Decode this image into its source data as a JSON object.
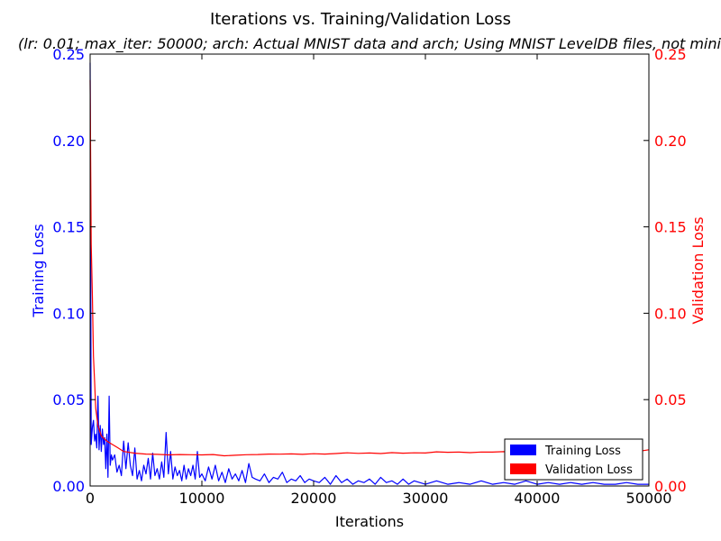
{
  "chart_data": {
    "type": "line",
    "title": "Iterations vs. Training/Validation Loss",
    "subtitle": "(lr: 0.01; max_iter: 50000; arch: Actual MNIST data and arch; Using MNIST LevelDB files, not mini",
    "xlabel": "Iterations",
    "ylabel_left": "Training Loss",
    "ylabel_right": "Validation Loss",
    "xlim": [
      0,
      50000
    ],
    "ylim_left": [
      0,
      0.25
    ],
    "ylim_right": [
      0,
      0.25
    ],
    "x_ticks": [
      "0",
      "10000",
      "20000",
      "30000",
      "40000",
      "50000"
    ],
    "y_ticks_left": [
      "0.00",
      "0.05",
      "0.10",
      "0.15",
      "0.20",
      "0.25"
    ],
    "y_ticks_right": [
      "0.00",
      "0.05",
      "0.10",
      "0.15",
      "0.20",
      "0.25"
    ],
    "grid": false,
    "legend_position": "bottom-right",
    "colors": {
      "training": "#0000ff",
      "validation": "#ff0000"
    },
    "series": [
      {
        "name": "Training Loss",
        "axis": "left",
        "color": "#0000ff",
        "x": [
          0,
          100,
          200,
          300,
          400,
          500,
          600,
          700,
          800,
          900,
          1000,
          1100,
          1200,
          1300,
          1400,
          1500,
          1600,
          1700,
          1800,
          1900,
          2000,
          2200,
          2400,
          2600,
          2800,
          3000,
          3200,
          3400,
          3600,
          3800,
          4000,
          4200,
          4400,
          4600,
          4800,
          5000,
          5200,
          5400,
          5600,
          5800,
          6000,
          6200,
          6400,
          6600,
          6800,
          7000,
          7200,
          7400,
          7600,
          7800,
          8000,
          8200,
          8400,
          8600,
          8800,
          9000,
          9200,
          9400,
          9600,
          9800,
          10000,
          10300,
          10600,
          10900,
          11200,
          11500,
          11800,
          12100,
          12400,
          12700,
          13000,
          13300,
          13600,
          13900,
          14200,
          14500,
          14800,
          15200,
          15600,
          16000,
          16400,
          16800,
          17200,
          17600,
          18000,
          18400,
          18800,
          19200,
          19600,
          20000,
          20500,
          21000,
          21500,
          22000,
          22500,
          23000,
          23500,
          24000,
          24500,
          25000,
          25500,
          26000,
          26500,
          27000,
          27500,
          28000,
          28500,
          29000,
          29500,
          30000,
          31000,
          32000,
          33000,
          34000,
          35000,
          36000,
          37000,
          38000,
          39000,
          40000,
          41000,
          42000,
          43000,
          44000,
          45000,
          46000,
          47000,
          48000,
          49000,
          50000
        ],
        "values": [
          0.245,
          0.024,
          0.034,
          0.038,
          0.026,
          0.03,
          0.022,
          0.052,
          0.021,
          0.035,
          0.02,
          0.033,
          0.024,
          0.028,
          0.01,
          0.03,
          0.005,
          0.052,
          0.012,
          0.018,
          0.015,
          0.018,
          0.008,
          0.012,
          0.006,
          0.026,
          0.01,
          0.025,
          0.012,
          0.006,
          0.022,
          0.004,
          0.009,
          0.003,
          0.012,
          0.007,
          0.016,
          0.004,
          0.019,
          0.006,
          0.01,
          0.004,
          0.014,
          0.005,
          0.031,
          0.007,
          0.02,
          0.004,
          0.011,
          0.006,
          0.009,
          0.003,
          0.012,
          0.004,
          0.01,
          0.006,
          0.012,
          0.004,
          0.02,
          0.005,
          0.007,
          0.003,
          0.011,
          0.004,
          0.012,
          0.003,
          0.008,
          0.002,
          0.01,
          0.004,
          0.007,
          0.003,
          0.009,
          0.002,
          0.013,
          0.005,
          0.004,
          0.003,
          0.007,
          0.002,
          0.005,
          0.004,
          0.008,
          0.002,
          0.004,
          0.003,
          0.006,
          0.002,
          0.004,
          0.003,
          0.002,
          0.005,
          0.001,
          0.006,
          0.002,
          0.004,
          0.001,
          0.003,
          0.002,
          0.004,
          0.001,
          0.005,
          0.002,
          0.003,
          0.001,
          0.004,
          0.001,
          0.003,
          0.002,
          0.001,
          0.003,
          0.001,
          0.002,
          0.001,
          0.003,
          0.001,
          0.002,
          0.001,
          0.003,
          0.001,
          0.002,
          0.001,
          0.002,
          0.001,
          0.002,
          0.001,
          0.001,
          0.002,
          0.001,
          0.001
        ]
      },
      {
        "name": "Validation Loss",
        "axis": "right",
        "color": "#ff0000",
        "x": [
          0,
          100,
          200,
          300,
          400,
          500,
          700,
          1000,
          1500,
          2000,
          2500,
          3000,
          4000,
          5000,
          6000,
          7000,
          8000,
          9000,
          10000,
          11000,
          12000,
          13000,
          14000,
          15000,
          16000,
          17000,
          18000,
          19000,
          20000,
          21000,
          22000,
          23000,
          24000,
          25000,
          26000,
          27000,
          28000,
          29000,
          30000,
          31000,
          32000,
          33000,
          34000,
          35000,
          36000,
          37000,
          38000,
          39000,
          40000,
          41000,
          42000,
          43000,
          44000,
          45000,
          46000,
          47000,
          48000,
          49000,
          50000
        ],
        "values": [
          0.235,
          0.14,
          0.11,
          0.075,
          0.06,
          0.045,
          0.035,
          0.029,
          0.026,
          0.024,
          0.022,
          0.02,
          0.019,
          0.0185,
          0.0183,
          0.018,
          0.0182,
          0.0181,
          0.018,
          0.0182,
          0.0175,
          0.0178,
          0.0181,
          0.0182,
          0.0185,
          0.0184,
          0.0186,
          0.0183,
          0.0187,
          0.0185,
          0.0188,
          0.0192,
          0.0189,
          0.0191,
          0.0188,
          0.0193,
          0.019,
          0.0192,
          0.0191,
          0.0198,
          0.0195,
          0.0196,
          0.0193,
          0.0197,
          0.0196,
          0.0199,
          0.0197,
          0.0198,
          0.0196,
          0.02,
          0.0198,
          0.0201,
          0.0199,
          0.0202,
          0.0205,
          0.0203,
          0.0202,
          0.02,
          0.021
        ]
      }
    ]
  }
}
